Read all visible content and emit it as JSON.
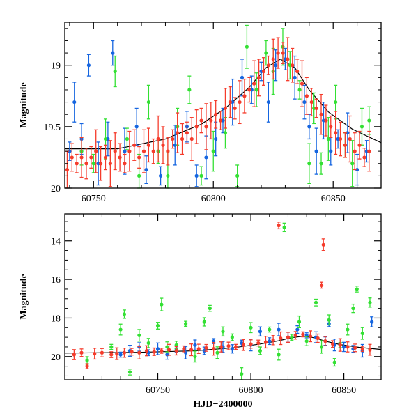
{
  "chart_data": [
    {
      "type": "scatter",
      "panel": "top",
      "title": "",
      "xlabel": "",
      "ylabel": "Magnitude",
      "xlim": [
        60738,
        60870
      ],
      "ylim": [
        20.0,
        18.65
      ],
      "y_inverted": true,
      "xticks": [
        60750,
        60800,
        60850
      ],
      "yticks": [
        19,
        19.5,
        20
      ],
      "ytick_labels": [
        "19",
        "19.5",
        "20"
      ],
      "grid": false,
      "legend": "none",
      "series": [
        {
          "color": "#1565e0",
          "values": [
            [
              60740,
              19.7
            ],
            [
              60742,
              19.3
            ],
            [
              60745,
              19.6
            ],
            [
              60748,
              19.0
            ],
            [
              60752,
              19.8
            ],
            [
              60756,
              19.6
            ],
            [
              60758,
              18.9
            ],
            [
              60763,
              19.7
            ],
            [
              60768,
              19.5
            ],
            [
              60772,
              19.85
            ],
            [
              60778,
              19.9
            ],
            [
              60784,
              19.65
            ],
            [
              60789,
              19.5
            ],
            [
              60793,
              19.9
            ],
            [
              60797,
              19.75
            ],
            [
              60801,
              19.6
            ],
            [
              60804,
              19.45
            ],
            [
              60808,
              19.3
            ],
            [
              60812,
              19.1
            ],
            [
              60816,
              19.2
            ],
            [
              60820,
              19.05
            ],
            [
              60823,
              19.3
            ],
            [
              60826,
              19.0
            ],
            [
              60830,
              18.95
            ],
            [
              60834,
              19.1
            ],
            [
              60838,
              19.3
            ],
            [
              60840,
              19.5
            ],
            [
              60843,
              19.7
            ],
            [
              60846,
              19.45
            ],
            [
              60849,
              19.7
            ],
            [
              60852,
              19.6
            ],
            [
              60856,
              19.55
            ],
            [
              60860,
              19.85
            ],
            [
              60864,
              19.7
            ]
          ]
        },
        {
          "color": "#33e033",
          "values": [
            [
              60745,
              19.7
            ],
            [
              60750,
              19.8
            ],
            [
              60755,
              19.6
            ],
            [
              60759,
              19.05
            ],
            [
              60764,
              19.6
            ],
            [
              60769,
              19.9
            ],
            [
              60773,
              19.3
            ],
            [
              60777,
              19.7
            ],
            [
              60781,
              19.9
            ],
            [
              60785,
              19.5
            ],
            [
              60790,
              19.2
            ],
            [
              60795,
              19.9
            ],
            [
              60800,
              19.7
            ],
            [
              60805,
              19.55
            ],
            [
              60810,
              19.9
            ],
            [
              60814,
              18.85
            ],
            [
              60818,
              19.2
            ],
            [
              60822,
              18.9
            ],
            [
              60825,
              19.05
            ],
            [
              60829,
              18.85
            ],
            [
              60832,
              19.0
            ],
            [
              60836,
              19.2
            ],
            [
              60840,
              19.8
            ],
            [
              60842,
              19.35
            ],
            [
              60845,
              19.8
            ],
            [
              60848,
              19.6
            ],
            [
              60851,
              19.3
            ],
            [
              60855,
              19.65
            ],
            [
              60858,
              19.8
            ],
            [
              60862,
              19.5
            ],
            [
              60865,
              19.45
            ]
          ]
        },
        {
          "color": "#f53b2b",
          "values": [
            [
              60739,
              19.85
            ],
            [
              60741,
              19.75
            ],
            [
              60743,
              19.8
            ],
            [
              60745,
              19.75
            ],
            [
              60747,
              19.8
            ],
            [
              60749,
              19.75
            ],
            [
              60751,
              19.7
            ],
            [
              60753,
              19.8
            ],
            [
              60755,
              19.75
            ],
            [
              60757,
              19.8
            ],
            [
              60759,
              19.7
            ],
            [
              60761,
              19.75
            ],
            [
              60763,
              19.8
            ],
            [
              60765,
              19.7
            ],
            [
              60767,
              19.65
            ],
            [
              60769,
              19.75
            ],
            [
              60771,
              19.7
            ],
            [
              60773,
              19.65
            ],
            [
              60775,
              19.7
            ],
            [
              60777,
              19.6
            ],
            [
              60779,
              19.65
            ],
            [
              60781,
              19.7
            ],
            [
              60783,
              19.6
            ],
            [
              60785,
              19.55
            ],
            [
              60787,
              19.6
            ],
            [
              60789,
              19.55
            ],
            [
              60791,
              19.6
            ],
            [
              60793,
              19.5
            ],
            [
              60795,
              19.45
            ],
            [
              60797,
              19.5
            ],
            [
              60799,
              19.45
            ],
            [
              60801,
              19.4
            ],
            [
              60803,
              19.45
            ],
            [
              60805,
              19.35
            ],
            [
              60807,
              19.3
            ],
            [
              60809,
              19.35
            ],
            [
              60811,
              19.3
            ],
            [
              60813,
              19.25
            ],
            [
              60815,
              19.2
            ],
            [
              60817,
              19.15
            ],
            [
              60819,
              19.1
            ],
            [
              60821,
              19.05
            ],
            [
              60823,
              19.0
            ],
            [
              60825,
              18.95
            ],
            [
              60827,
              18.9
            ],
            [
              60829,
              18.9
            ],
            [
              60831,
              18.95
            ],
            [
              60833,
              19.0
            ],
            [
              60835,
              19.05
            ],
            [
              60837,
              19.15
            ],
            [
              60839,
              19.25
            ],
            [
              60841,
              19.3
            ],
            [
              60843,
              19.35
            ],
            [
              60845,
              19.4
            ],
            [
              60847,
              19.45
            ],
            [
              60849,
              19.5
            ],
            [
              60851,
              19.55
            ],
            [
              60853,
              19.6
            ],
            [
              60855,
              19.65
            ],
            [
              60857,
              19.6
            ],
            [
              60859,
              19.7
            ],
            [
              60861,
              19.65
            ],
            [
              60863,
              19.75
            ],
            [
              60865,
              19.7
            ]
          ]
        }
      ],
      "model_curve": [
        [
          60738,
          19.68
        ],
        [
          60760,
          19.68
        ],
        [
          60780,
          19.6
        ],
        [
          60795,
          19.48
        ],
        [
          60805,
          19.35
        ],
        [
          60815,
          19.18
        ],
        [
          60822,
          19.02
        ],
        [
          60828,
          18.95
        ],
        [
          60834,
          19.02
        ],
        [
          60840,
          19.2
        ],
        [
          60848,
          19.38
        ],
        [
          60858,
          19.52
        ],
        [
          60870,
          19.63
        ]
      ]
    },
    {
      "type": "scatter",
      "panel": "bottom",
      "title": "",
      "xlabel": "HJD−2400000",
      "ylabel": "Magnitude",
      "xlim": [
        60700,
        60870
      ],
      "ylim": [
        21.2,
        12.6
      ],
      "y_inverted": true,
      "xticks": [
        60750,
        60800,
        60850
      ],
      "yticks": [
        14,
        16,
        18,
        20
      ],
      "ytick_labels": [
        "14",
        "16",
        "18",
        "20"
      ],
      "grid": false,
      "legend": "none",
      "series": [
        {
          "color": "#1565e0",
          "values": [
            [
              60730,
              19.9
            ],
            [
              60735,
              19.7
            ],
            [
              60740,
              19.5
            ],
            [
              60745,
              19.8
            ],
            [
              60750,
              19.6
            ],
            [
              60755,
              19.9
            ],
            [
              60760,
              19.6
            ],
            [
              60765,
              19.8
            ],
            [
              60770,
              19.4
            ],
            [
              60775,
              19.7
            ],
            [
              60780,
              19.2
            ],
            [
              60785,
              19.5
            ],
            [
              60790,
              19.6
            ],
            [
              60795,
              19.3
            ],
            [
              60800,
              19.4
            ],
            [
              60805,
              18.7
            ],
            [
              60810,
              19.2
            ],
            [
              60815,
              18.6
            ],
            [
              60820,
              19.0
            ],
            [
              60825,
              18.6
            ],
            [
              60830,
              18.9
            ],
            [
              60835,
              19.0
            ],
            [
              60840,
              19.2
            ],
            [
              60842,
              18.3
            ],
            [
              60845,
              19.4
            ],
            [
              60850,
              19.5
            ],
            [
              60855,
              19.6
            ],
            [
              60860,
              19.7
            ],
            [
              60865,
              18.2
            ]
          ]
        },
        {
          "color": "#33e033",
          "values": [
            [
              60712,
              20.2
            ],
            [
              60725,
              19.5
            ],
            [
              60730,
              18.6
            ],
            [
              60732,
              17.8
            ],
            [
              60735,
              20.8
            ],
            [
              60740,
              18.9
            ],
            [
              60745,
              19.3
            ],
            [
              60750,
              18.4
            ],
            [
              60752,
              17.3
            ],
            [
              60755,
              19.5
            ],
            [
              60760,
              19.4
            ],
            [
              60765,
              18.3
            ],
            [
              60770,
              20.0
            ],
            [
              60775,
              18.2
            ],
            [
              60778,
              17.5
            ],
            [
              60782,
              19.8
            ],
            [
              60785,
              18.7
            ],
            [
              60790,
              19.0
            ],
            [
              60795,
              20.9
            ],
            [
              60800,
              18.5
            ],
            [
              60805,
              19.7
            ],
            [
              60810,
              18.6
            ],
            [
              60815,
              19.9
            ],
            [
              60818,
              13.3
            ],
            [
              60822,
              19.0
            ],
            [
              60826,
              18.2
            ],
            [
              60830,
              19.2
            ],
            [
              60835,
              17.2
            ],
            [
              60838,
              19.5
            ],
            [
              60842,
              18.1
            ],
            [
              60845,
              20.3
            ],
            [
              60848,
              19.4
            ],
            [
              60852,
              18.6
            ],
            [
              60855,
              17.5
            ],
            [
              60857,
              16.5
            ],
            [
              60860,
              18.8
            ],
            [
              60864,
              17.2
            ]
          ]
        },
        {
          "color": "#f53b2b",
          "values": [
            [
              60705,
              19.9
            ],
            [
              60709,
              19.8
            ],
            [
              60712,
              20.5
            ],
            [
              60716,
              19.85
            ],
            [
              60720,
              19.8
            ],
            [
              60725,
              19.9
            ],
            [
              60728,
              19.85
            ],
            [
              60732,
              19.8
            ],
            [
              60736,
              19.75
            ],
            [
              60740,
              19.8
            ],
            [
              60744,
              19.7
            ],
            [
              60748,
              19.75
            ],
            [
              60752,
              19.7
            ],
            [
              60756,
              19.65
            ],
            [
              60760,
              19.7
            ],
            [
              60764,
              19.6
            ],
            [
              60768,
              19.65
            ],
            [
              60772,
              19.6
            ],
            [
              60776,
              19.55
            ],
            [
              60780,
              19.6
            ],
            [
              60784,
              19.5
            ],
            [
              60788,
              19.45
            ],
            [
              60792,
              19.5
            ],
            [
              60796,
              19.4
            ],
            [
              60800,
              19.35
            ],
            [
              60804,
              19.3
            ],
            [
              60808,
              19.25
            ],
            [
              60812,
              19.15
            ],
            [
              60815,
              13.2
            ],
            [
              60816,
              19.05
            ],
            [
              60820,
              19.0
            ],
            [
              60824,
              18.9
            ],
            [
              60828,
              18.85
            ],
            [
              60832,
              18.95
            ],
            [
              60836,
              19.05
            ],
            [
              60838,
              16.3
            ],
            [
              60839,
              14.2
            ],
            [
              60840,
              19.2
            ],
            [
              60844,
              19.35
            ],
            [
              60848,
              19.4
            ],
            [
              60852,
              19.5
            ],
            [
              60856,
              19.55
            ],
            [
              60860,
              19.6
            ],
            [
              60864,
              19.65
            ]
          ]
        }
      ],
      "model_curve": [
        [
          60700,
          19.82
        ],
        [
          60740,
          19.78
        ],
        [
          60770,
          19.7
        ],
        [
          60790,
          19.55
        ],
        [
          60805,
          19.35
        ],
        [
          60815,
          19.18
        ],
        [
          60822,
          19.02
        ],
        [
          60828,
          18.95
        ],
        [
          60834,
          19.02
        ],
        [
          60840,
          19.2
        ],
        [
          60848,
          19.38
        ],
        [
          60858,
          19.52
        ],
        [
          60870,
          19.63
        ]
      ]
    }
  ]
}
